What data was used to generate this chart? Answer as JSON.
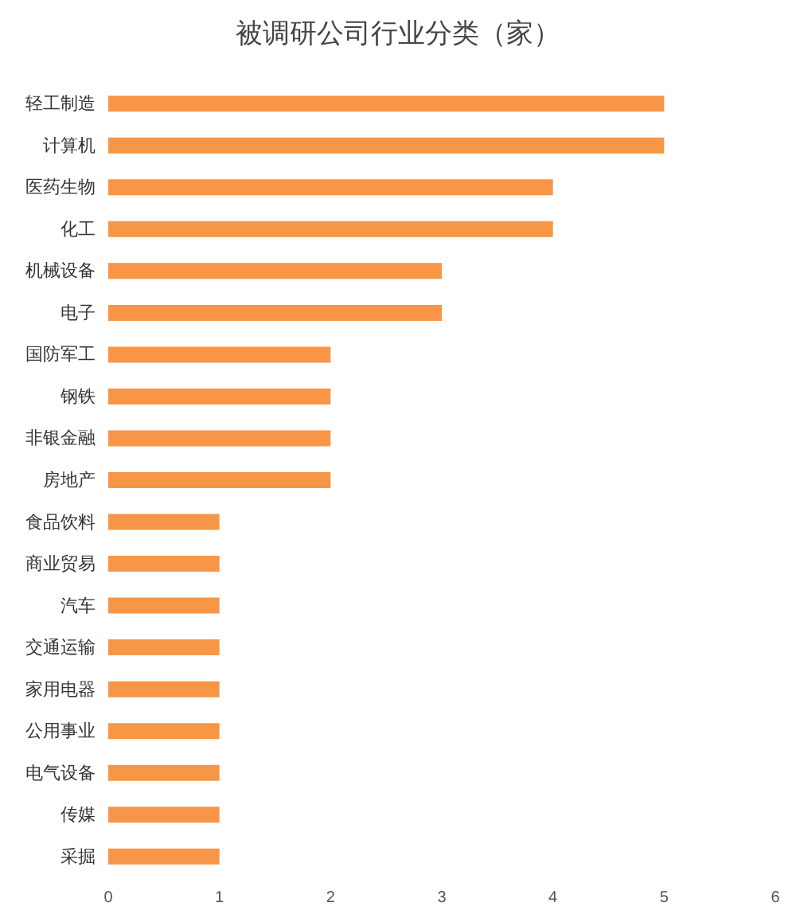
{
  "chart_data": {
    "type": "bar",
    "orientation": "horizontal",
    "title": "被调研公司行业分类（家）",
    "categories": [
      "轻工制造",
      "计算机",
      "医药生物",
      "化工",
      "机械设备",
      "电子",
      "国防军工",
      "钢铁",
      "非银金融",
      "房地产",
      "食品饮料",
      "商业贸易",
      "汽车",
      "交通运输",
      "家用电器",
      "公用事业",
      "电气设备",
      "传媒",
      "采掘"
    ],
    "values": [
      5,
      5,
      4,
      4,
      3,
      3,
      2,
      2,
      2,
      2,
      1,
      1,
      1,
      1,
      1,
      1,
      1,
      1,
      1
    ],
    "color": "#f79646",
    "xlim": [
      0,
      6
    ],
    "xticks": [
      0,
      1,
      2,
      3,
      4,
      5,
      6
    ],
    "grid": false
  }
}
